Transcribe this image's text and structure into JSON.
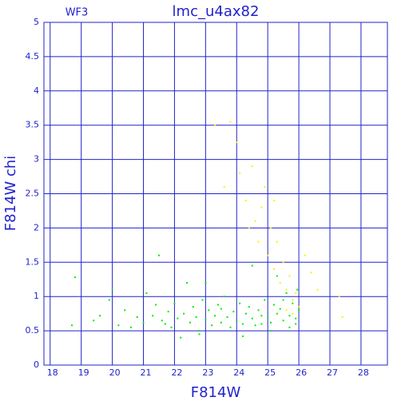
{
  "chart_data": {
    "type": "scatter",
    "title": "lmc_u4ax82",
    "subtitle": "WF3",
    "x_label": "F814W",
    "y_label": "F814W  chi",
    "xlim": [
      17.8,
      28.85
    ],
    "ylim": [
      0,
      5
    ],
    "xticks": [
      18,
      19,
      20,
      21,
      22,
      23,
      24,
      25,
      26,
      27,
      28
    ],
    "yticks": [
      0,
      0.5,
      1,
      1.5,
      2,
      2.5,
      3,
      3.5,
      4,
      4.5,
      5
    ],
    "grid": true,
    "series": [
      {
        "color": "#00ee00",
        "x": [
          18.7,
          18.8,
          19.4,
          19.6,
          19.9,
          20.0,
          20.2,
          20.4,
          20.6,
          20.8,
          21.0,
          21.1,
          21.3,
          21.4,
          21.5,
          21.6,
          21.8,
          21.9,
          22.0,
          22.1,
          22.2,
          22.3,
          22.4,
          22.5,
          22.6,
          22.7,
          22.8,
          22.9,
          23.0,
          23.1,
          23.2,
          23.3,
          23.4,
          23.5,
          23.6,
          23.7,
          23.8,
          23.9,
          24.0,
          24.1,
          24.2,
          24.3,
          24.4,
          24.5,
          24.6,
          24.7,
          24.8,
          24.9,
          25.0,
          25.1,
          25.2,
          25.3,
          25.4,
          25.5,
          25.6,
          25.7,
          25.8,
          25.9,
          26.0,
          25.95,
          25.3,
          24.5,
          23.0,
          22.8,
          24.2,
          25.1,
          25.7,
          21.7,
          23.5,
          24.8,
          25.5,
          25.9
        ],
        "values": [
          0.58,
          1.28,
          0.65,
          0.72,
          0.95,
          1.12,
          0.58,
          0.8,
          0.55,
          0.7,
          0.62,
          1.05,
          0.72,
          0.88,
          1.6,
          0.65,
          0.78,
          0.55,
          0.9,
          0.68,
          0.4,
          0.75,
          1.2,
          0.62,
          0.85,
          0.7,
          0.5,
          0.95,
          0.66,
          0.8,
          0.58,
          0.72,
          0.88,
          0.62,
          1.0,
          0.7,
          0.55,
          0.78,
          0.65,
          0.9,
          0.6,
          0.75,
          0.85,
          0.68,
          0.58,
          0.8,
          0.72,
          0.95,
          0.7,
          0.62,
          0.88,
          0.75,
          0.82,
          0.65,
          1.05,
          0.72,
          0.9,
          0.68,
          0.8,
          1.1,
          1.3,
          1.45,
          1.2,
          0.45,
          0.42,
          0.5,
          0.55,
          0.6,
          0.82,
          0.6,
          0.95,
          0.6
        ]
      },
      {
        "color": "#ffee00",
        "x": [
          23.3,
          23.6,
          23.8,
          24.0,
          24.1,
          24.3,
          24.5,
          24.6,
          24.7,
          24.8,
          24.9,
          25.0,
          25.1,
          25.2,
          25.3,
          25.4,
          25.5,
          25.6,
          25.7,
          25.8,
          25.9,
          26.0,
          26.2,
          26.4,
          26.6,
          27.3,
          27.4,
          25.6,
          25.8,
          25.2,
          24.4
        ],
        "values": [
          3.5,
          2.6,
          3.55,
          3.25,
          2.8,
          2.4,
          2.9,
          2.1,
          1.8,
          2.3,
          2.6,
          1.6,
          2.0,
          1.4,
          1.8,
          1.2,
          1.5,
          1.1,
          1.3,
          0.95,
          1.05,
          0.85,
          1.6,
          1.35,
          1.1,
          1.0,
          0.7,
          0.8,
          0.75,
          2.4,
          2.0
        ]
      }
    ]
  }
}
